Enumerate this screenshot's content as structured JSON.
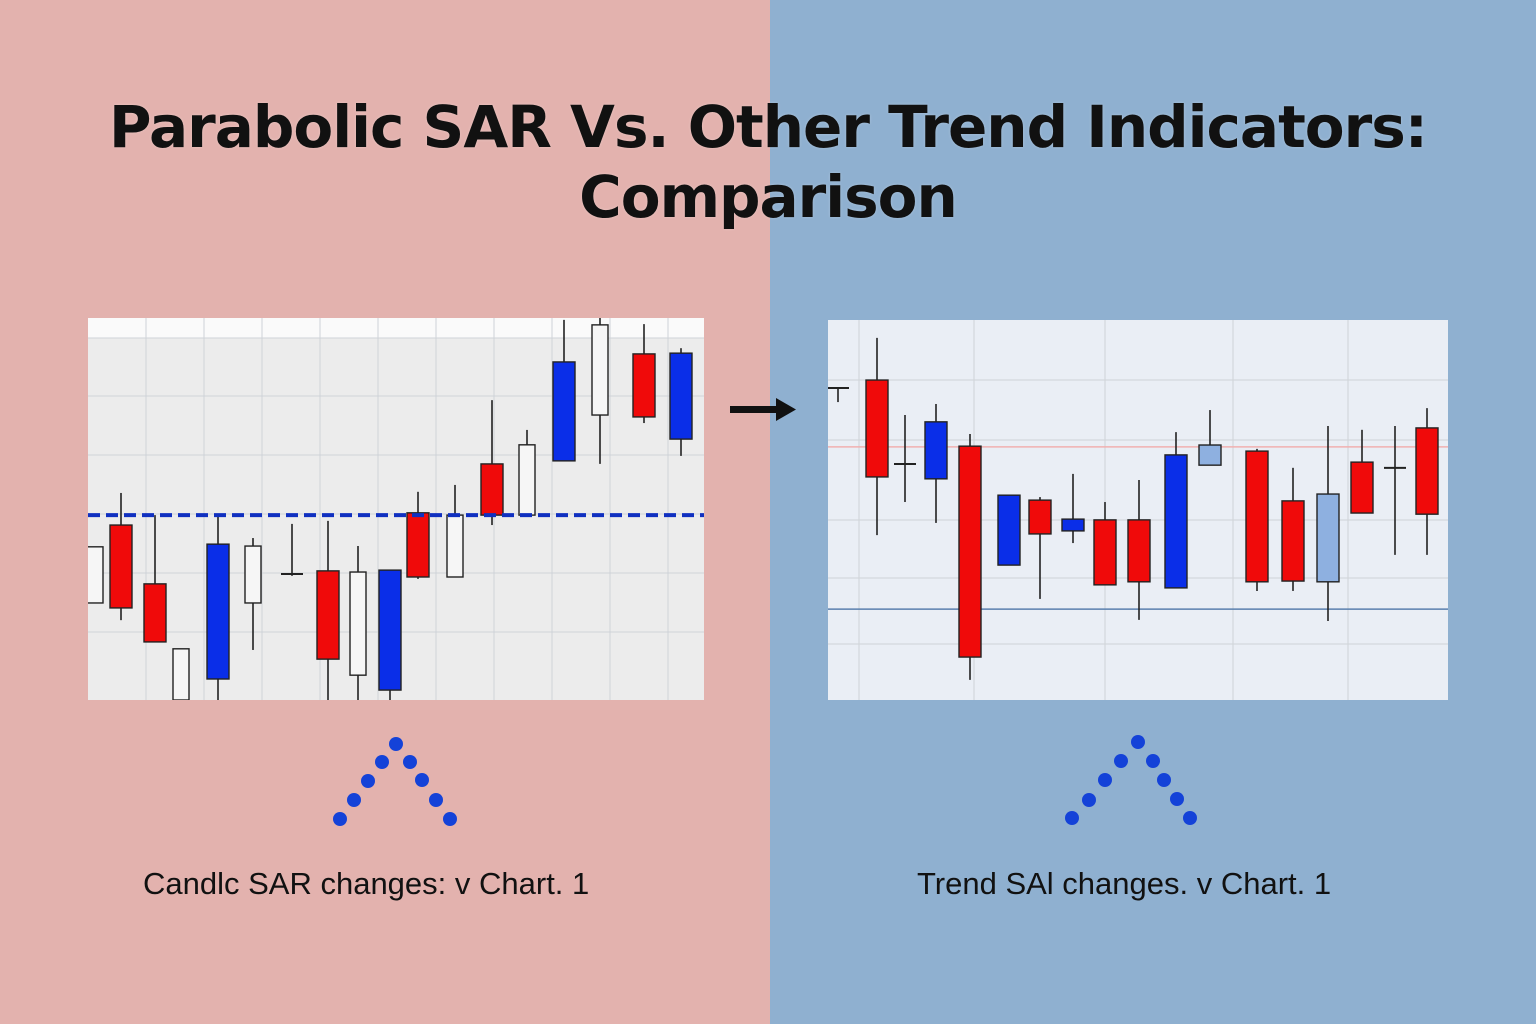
{
  "title": {
    "line1": "Parabolic SAR Vs. Other Trend Indicators:",
    "line2": "Comparison"
  },
  "colors": {
    "left_background": "#e3b2ae",
    "right_background": "#8fb0d0",
    "bullish_blue": "#0a2ee8",
    "bearish_red": "#f00a0a",
    "light_blue": "#8eb0e0",
    "sar_dots": "#1442d8"
  },
  "captions": {
    "left": "Candlc SAR changes:  v Chart. 1",
    "right": "Trend SAl changes. v Chart. 1"
  },
  "arrow_icon": "arrow-right",
  "chart_data": [
    {
      "type": "candlestick",
      "title": "",
      "xlabel": "",
      "ylabel": "",
      "ylim": [
        0,
        100
      ],
      "grid": true,
      "sar_line": 48.4,
      "candles": [
        {
          "body_top": 40.1,
          "body_bottom": 25.4,
          "high": 40.1,
          "low": 25.4,
          "color": "white"
        },
        {
          "body_top": 45.8,
          "body_bottom": 24.1,
          "high": 54.2,
          "low": 20.9,
          "color": "red"
        },
        {
          "body_top": 30.4,
          "body_bottom": 15.2,
          "high": 48.4,
          "low": 15.2,
          "color": "red"
        },
        {
          "body_top": 13.4,
          "body_bottom": 0,
          "high": 13.4,
          "low": 0,
          "color": "white"
        },
        {
          "body_top": 40.8,
          "body_bottom": 5.5,
          "high": 48.4,
          "low": 0,
          "color": "blue"
        },
        {
          "body_top": 40.3,
          "body_bottom": 25.4,
          "high": 42.4,
          "low": 13.1,
          "color": "white"
        },
        {
          "body_top": 33.0,
          "body_bottom": 32.5,
          "high": 46.1,
          "low": 32.5,
          "color": "dark"
        },
        {
          "body_top": 33.8,
          "body_bottom": 10.7,
          "high": 46.9,
          "low": 0,
          "color": "red"
        },
        {
          "body_top": 33.5,
          "body_bottom": 6.5,
          "high": 40.3,
          "low": 0,
          "color": "white"
        },
        {
          "body_top": 34.0,
          "body_bottom": 2.6,
          "high": 34.0,
          "low": 0,
          "color": "blue"
        },
        {
          "body_top": 49.0,
          "body_bottom": 32.2,
          "high": 54.5,
          "low": 31.7,
          "color": "red"
        },
        {
          "body_top": 48.4,
          "body_bottom": 32.2,
          "high": 56.3,
          "low": 32.2,
          "color": "white"
        },
        {
          "body_top": 61.8,
          "body_bottom": 48.4,
          "high": 78.5,
          "low": 45.8,
          "color": "red"
        },
        {
          "body_top": 66.8,
          "body_bottom": 48.4,
          "high": 70.7,
          "low": 48.4,
          "color": "white"
        },
        {
          "body_top": 88.5,
          "body_bottom": 62.6,
          "high": 99.5,
          "low": 62.6,
          "color": "blue"
        },
        {
          "body_top": 98.2,
          "body_bottom": 74.6,
          "high": 100,
          "low": 61.8,
          "color": "white"
        },
        {
          "body_top": 90.6,
          "body_bottom": 74.1,
          "high": 98.4,
          "low": 72.5,
          "color": "red"
        },
        {
          "body_top": 90.8,
          "body_bottom": 68.3,
          "high": 92.1,
          "low": 63.9,
          "color": "blue"
        }
      ]
    },
    {
      "type": "candlestick",
      "title": "",
      "xlabel": "",
      "ylabel": "",
      "ylim": [
        0,
        100
      ],
      "grid": true,
      "reference_lines": [
        {
          "value": 66.6,
          "color": "#f0b0b0"
        },
        {
          "value": 23.9,
          "color": "#5a7fae"
        }
      ],
      "candles": [
        {
          "body_top": 82.1,
          "body_bottom": 82.1,
          "high": 82.1,
          "low": 78.4,
          "color": "dark"
        },
        {
          "body_top": 84.2,
          "body_bottom": 58.7,
          "high": 95.3,
          "low": 43.4,
          "color": "red"
        },
        {
          "body_top": 62.1,
          "body_bottom": 62.1,
          "high": 75.0,
          "low": 52.1,
          "color": "dark"
        },
        {
          "body_top": 73.2,
          "body_bottom": 58.2,
          "high": 77.9,
          "low": 46.6,
          "color": "blue"
        },
        {
          "body_top": 66.8,
          "body_bottom": 11.3,
          "high": 70.0,
          "low": 5.3,
          "color": "red"
        },
        {
          "body_top": 53.9,
          "body_bottom": 35.5,
          "high": 53.9,
          "low": 35.5,
          "color": "blue"
        },
        {
          "body_top": 52.6,
          "body_bottom": 43.7,
          "high": 53.4,
          "low": 26.6,
          "color": "red"
        },
        {
          "body_top": 47.6,
          "body_bottom": 44.5,
          "high": 59.5,
          "low": 41.3,
          "color": "blue"
        },
        {
          "body_top": 47.4,
          "body_bottom": 30.3,
          "high": 52.1,
          "low": 30.3,
          "color": "red"
        },
        {
          "body_top": 47.4,
          "body_bottom": 31.1,
          "high": 57.9,
          "low": 21.1,
          "color": "red"
        },
        {
          "body_top": 64.5,
          "body_bottom": 29.5,
          "high": 70.5,
          "low": 29.5,
          "color": "blue"
        },
        {
          "body_top": 67.1,
          "body_bottom": 61.8,
          "high": 76.3,
          "low": 61.8,
          "color": "lightblue"
        },
        {
          "body_top": 65.5,
          "body_bottom": 31.1,
          "high": 66.1,
          "low": 28.7,
          "color": "red"
        },
        {
          "body_top": 52.4,
          "body_bottom": 31.3,
          "high": 61.1,
          "low": 28.7,
          "color": "red"
        },
        {
          "body_top": 54.2,
          "body_bottom": 31.1,
          "high": 72.1,
          "low": 20.8,
          "color": "lightblue"
        },
        {
          "body_top": 62.6,
          "body_bottom": 49.2,
          "high": 71.1,
          "low": 49.2,
          "color": "red"
        },
        {
          "body_top": 61.1,
          "body_bottom": 61.1,
          "high": 72.1,
          "low": 38.2,
          "color": "dark"
        },
        {
          "body_top": 71.6,
          "body_bottom": 48.9,
          "high": 76.8,
          "low": 38.2,
          "color": "red"
        }
      ]
    }
  ]
}
